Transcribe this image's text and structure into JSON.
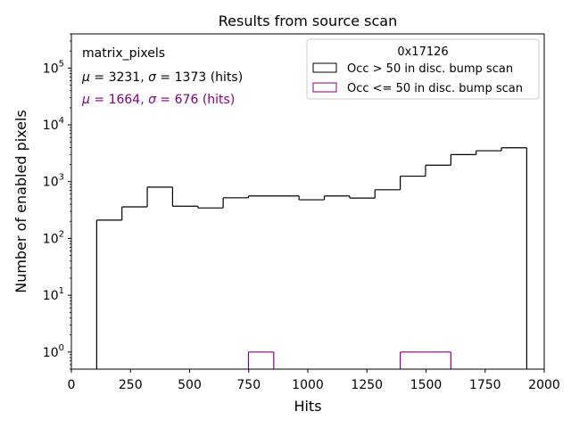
{
  "chart_data": {
    "type": "histogram",
    "title": "Results from source scan",
    "xlabel": "Hits",
    "ylabel": "Number of enabled pixels",
    "xlim": [
      0,
      2000
    ],
    "ylim": [
      0.5,
      400000
    ],
    "yscale": "log",
    "grid": false,
    "x_ticks": [
      0,
      250,
      500,
      750,
      1000,
      1250,
      1500,
      1750,
      2000
    ],
    "x_tick_labels": [
      "0",
      "250",
      "500",
      "750",
      "1000",
      "1250",
      "1500",
      "1750",
      "2000"
    ],
    "y_ticks": [
      1,
      10,
      100,
      1000,
      10000,
      100000
    ],
    "y_tick_exponents": [
      "0",
      "1",
      "2",
      "3",
      "4",
      "5"
    ],
    "bin_edges": [
      107,
      214,
      321,
      428,
      535,
      642,
      749,
      856,
      963,
      1070,
      1177,
      1284,
      1391,
      1498,
      1605,
      1712,
      1819,
      1926
    ],
    "series": [
      {
        "name": "Occ > 50 in disc. bump scan",
        "color": "#000000",
        "values": [
          210,
          360,
          800,
          370,
          345,
          520,
          560,
          560,
          480,
          560,
          515,
          720,
          1250,
          1950,
          3000,
          3500,
          3950
        ]
      },
      {
        "name": "Occ <= 50 in disc. bump scan",
        "color": "#800080",
        "values": [
          0,
          0,
          0,
          0,
          0,
          0,
          1,
          0,
          0,
          0,
          0,
          0,
          1,
          1,
          0,
          0,
          0
        ]
      }
    ],
    "legend": {
      "title": "0x17126",
      "placement": "upper right"
    },
    "annotations": [
      {
        "text": "matrix_pixels",
        "color": "#000000"
      },
      {
        "mu": "3231",
        "sigma": "1373",
        "unit": "(hits)",
        "color": "#000000"
      },
      {
        "mu": "1664",
        "sigma": "676",
        "unit": "(hits)",
        "color": "#800080"
      }
    ]
  }
}
